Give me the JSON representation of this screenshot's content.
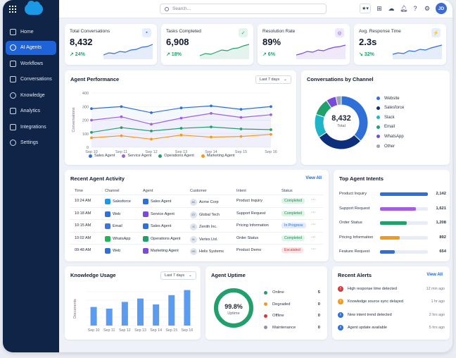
{
  "search": {
    "placeholder": "Search..."
  },
  "topbar": {
    "avatar_initials": "JD",
    "icons": [
      "star-icon",
      "plus-icon",
      "setup-icon",
      "bell-icon",
      "help-icon",
      "gear-icon"
    ]
  },
  "sidebar": {
    "items": [
      {
        "label": "Home",
        "icon": "home-icon",
        "active": false
      },
      {
        "label": "AI Agents",
        "icon": "robot-icon",
        "active": true
      },
      {
        "label": "Workflows",
        "icon": "workflow-icon",
        "active": false
      },
      {
        "label": "Conversations",
        "icon": "chat-icon",
        "active": false
      },
      {
        "label": "Knowledge",
        "icon": "book-icon",
        "active": false
      },
      {
        "label": "Analytics",
        "icon": "chart-icon",
        "active": false
      },
      {
        "label": "Integrations",
        "icon": "plug-icon",
        "active": false
      },
      {
        "label": "Settings",
        "icon": "gear-icon",
        "active": false
      }
    ]
  },
  "kpis": [
    {
      "title": "Total Conversations",
      "value": "8,432",
      "delta": "↗ 24%",
      "direction": "up",
      "icon": "chat-icon",
      "color": "#2f6fd8",
      "bg": "#e6efff"
    },
    {
      "title": "Tasks Completed",
      "value": "6,908",
      "delta": "↗ 18%",
      "direction": "up",
      "icon": "check-icon",
      "color": "#22a06b",
      "bg": "#e3f6ee"
    },
    {
      "title": "Resolution Rate",
      "value": "89%",
      "delta": "↗ 6%",
      "direction": "up",
      "icon": "target-icon",
      "color": "#7a4bd8",
      "bg": "#efe9fd"
    },
    {
      "title": "Avg. Response Time",
      "value": "2.3s",
      "delta": "↘ 32%",
      "direction": "down",
      "icon": "bolt-icon",
      "color": "#2f6fd8",
      "bg": "#e6efff"
    }
  ],
  "agent_performance": {
    "title": "Agent Performance",
    "range": "Last 7 days",
    "chart_data": {
      "type": "line",
      "x": [
        "Sep 10",
        "Sep 11",
        "Sep 12",
        "Sep 13",
        "Sep 14",
        "Sep 15",
        "Sep 16"
      ],
      "ylabel": "Conversations",
      "ylim": [
        0,
        400
      ],
      "yticks": [
        0,
        100,
        200,
        300,
        400
      ],
      "series": [
        {
          "name": "Sales Agent",
          "color": "#2f6fd8",
          "values": [
            285,
            300,
            255,
            290,
            305,
            280,
            300
          ]
        },
        {
          "name": "Service Agent",
          "color": "#a15ee0",
          "values": [
            200,
            225,
            170,
            215,
            250,
            220,
            240
          ]
        },
        {
          "name": "Operations Agent",
          "color": "#22a06b",
          "values": [
            110,
            145,
            120,
            140,
            150,
            135,
            130
          ]
        },
        {
          "name": "Marketing Agent",
          "color": "#f39a1d",
          "values": [
            70,
            85,
            60,
            90,
            75,
            80,
            95
          ]
        }
      ]
    }
  },
  "channels": {
    "title": "Conversations by Channel",
    "center_value": "8,432",
    "center_label": "Total",
    "chart_data": {
      "type": "pie",
      "categories": [
        "Website",
        "Salesforce",
        "Slack",
        "Email",
        "WhatsApp",
        "Other"
      ],
      "values": [
        3128,
        2416,
        1204,
        892,
        512,
        280
      ],
      "display_values": [
        "3,128",
        "2,416",
        "1,204",
        "892",
        "512",
        "280"
      ],
      "colors": [
        "#2f6fd8",
        "#0b2f7a",
        "#1fb4c8",
        "#22a06b",
        "#7a4bd8",
        "#9aa6b8"
      ]
    }
  },
  "activity": {
    "title": "Recent Agent Activity",
    "view_all": "View All",
    "columns": [
      "Time",
      "Channel",
      "Agent",
      "Customer",
      "Intent",
      "Status"
    ],
    "rows": [
      {
        "time": "10:24 AM",
        "channel": "Salesforce",
        "agent": "Sales Agent",
        "customer": "Acme Corp",
        "cust_abbr": "AC",
        "intent": "Product Inquiry",
        "status": "Completed",
        "status_bg": "#ddf4e7",
        "status_fg": "#1f8a56",
        "ch_color": "#1a9ae6",
        "ag_color": "#2f6fd8"
      },
      {
        "time": "10:18 AM",
        "channel": "Web",
        "agent": "Service Agent",
        "customer": "Global Tech",
        "cust_abbr": "GT",
        "intent": "Support Request",
        "status": "Completed",
        "status_bg": "#ddf4e7",
        "status_fg": "#1f8a56",
        "ch_color": "#2f6fd8",
        "ag_color": "#7a4bd8"
      },
      {
        "time": "10:15 AM",
        "channel": "Email",
        "agent": "Sales Agent",
        "customer": "Zenith Inc.",
        "cust_abbr": "ZI",
        "intent": "Pricing Information",
        "status": "In Progress",
        "status_bg": "#e3ecfd",
        "status_fg": "#2f6fd8",
        "ch_color": "#3d74de",
        "ag_color": "#2f6fd8"
      },
      {
        "time": "10:02 AM",
        "channel": "WhatsApp",
        "agent": "Operations Agent",
        "customer": "Vertex Ltd.",
        "cust_abbr": "VL",
        "intent": "Order Status",
        "status": "Completed",
        "status_bg": "#ddf4e7",
        "status_fg": "#1f8a56",
        "ch_color": "#22b45a",
        "ag_color": "#22a06b"
      },
      {
        "time": "09:48 AM",
        "channel": "Web",
        "agent": "Marketing Agent",
        "customer": "Helix Systems",
        "cust_abbr": "HS",
        "intent": "Product Demo",
        "status": "Escalated",
        "status_bg": "#fde3e3",
        "status_fg": "#d23b3b",
        "ch_color": "#2f6fd8",
        "ag_color": "#7a4bd8"
      }
    ]
  },
  "intents": {
    "title": "Top Agent Intents",
    "chart_data": {
      "type": "bar",
      "categories": [
        "Product Inquiry",
        "Support Request",
        "Order Status",
        "Pricing Information",
        "Feature Request"
      ],
      "values": [
        2142,
        1621,
        1208,
        892,
        654
      ],
      "display_values": [
        "2,142",
        "1,621",
        "1,208",
        "892",
        "654"
      ],
      "colors": [
        "#2f6fd8",
        "#a15ee0",
        "#22a06b",
        "#f39a1d",
        "#2f6fd8"
      ],
      "xmax": 2142
    }
  },
  "knowledge": {
    "title": "Knowledge Usage",
    "range": "Last 7 days",
    "chart_data": {
      "type": "bar",
      "categories": [
        "Sep 10",
        "Sep 11",
        "Sep 12",
        "Sep 13",
        "Sep 14",
        "Sep 15",
        "Sep 16"
      ],
      "values": [
        22,
        20,
        28,
        32,
        25,
        36,
        42
      ],
      "ylabel": "Documents",
      "ylim": [
        0,
        45
      ]
    }
  },
  "uptime": {
    "title": "Agent Uptime",
    "percent": "99.8%",
    "fraction": 0.998,
    "label": "Uptime",
    "rows": [
      {
        "label": "Online",
        "value": "5",
        "color": "#22a06b"
      },
      {
        "label": "Degraded",
        "value": "0",
        "color": "#f39a1d"
      },
      {
        "label": "Offline",
        "value": "0",
        "color": "#d23b3b"
      },
      {
        "label": "Maintenance",
        "value": "0",
        "color": "#8a94a6"
      }
    ]
  },
  "alerts": {
    "title": "Recent Alerts",
    "view_all": "View All",
    "rows": [
      {
        "text": "High response time detected",
        "time": "12 min ago",
        "color": "#d23b3b",
        "glyph": "!"
      },
      {
        "text": "Knowledge source sync delayed",
        "time": "1 hr ago",
        "color": "#f39a1d",
        "glyph": "!"
      },
      {
        "text": "New intent trend detected",
        "time": "2 hrs ago",
        "color": "#2f6fd8",
        "glyph": "i"
      },
      {
        "text": "Agent update available",
        "time": "5 hrs ago",
        "color": "#2f6fd8",
        "glyph": "i"
      }
    ]
  }
}
